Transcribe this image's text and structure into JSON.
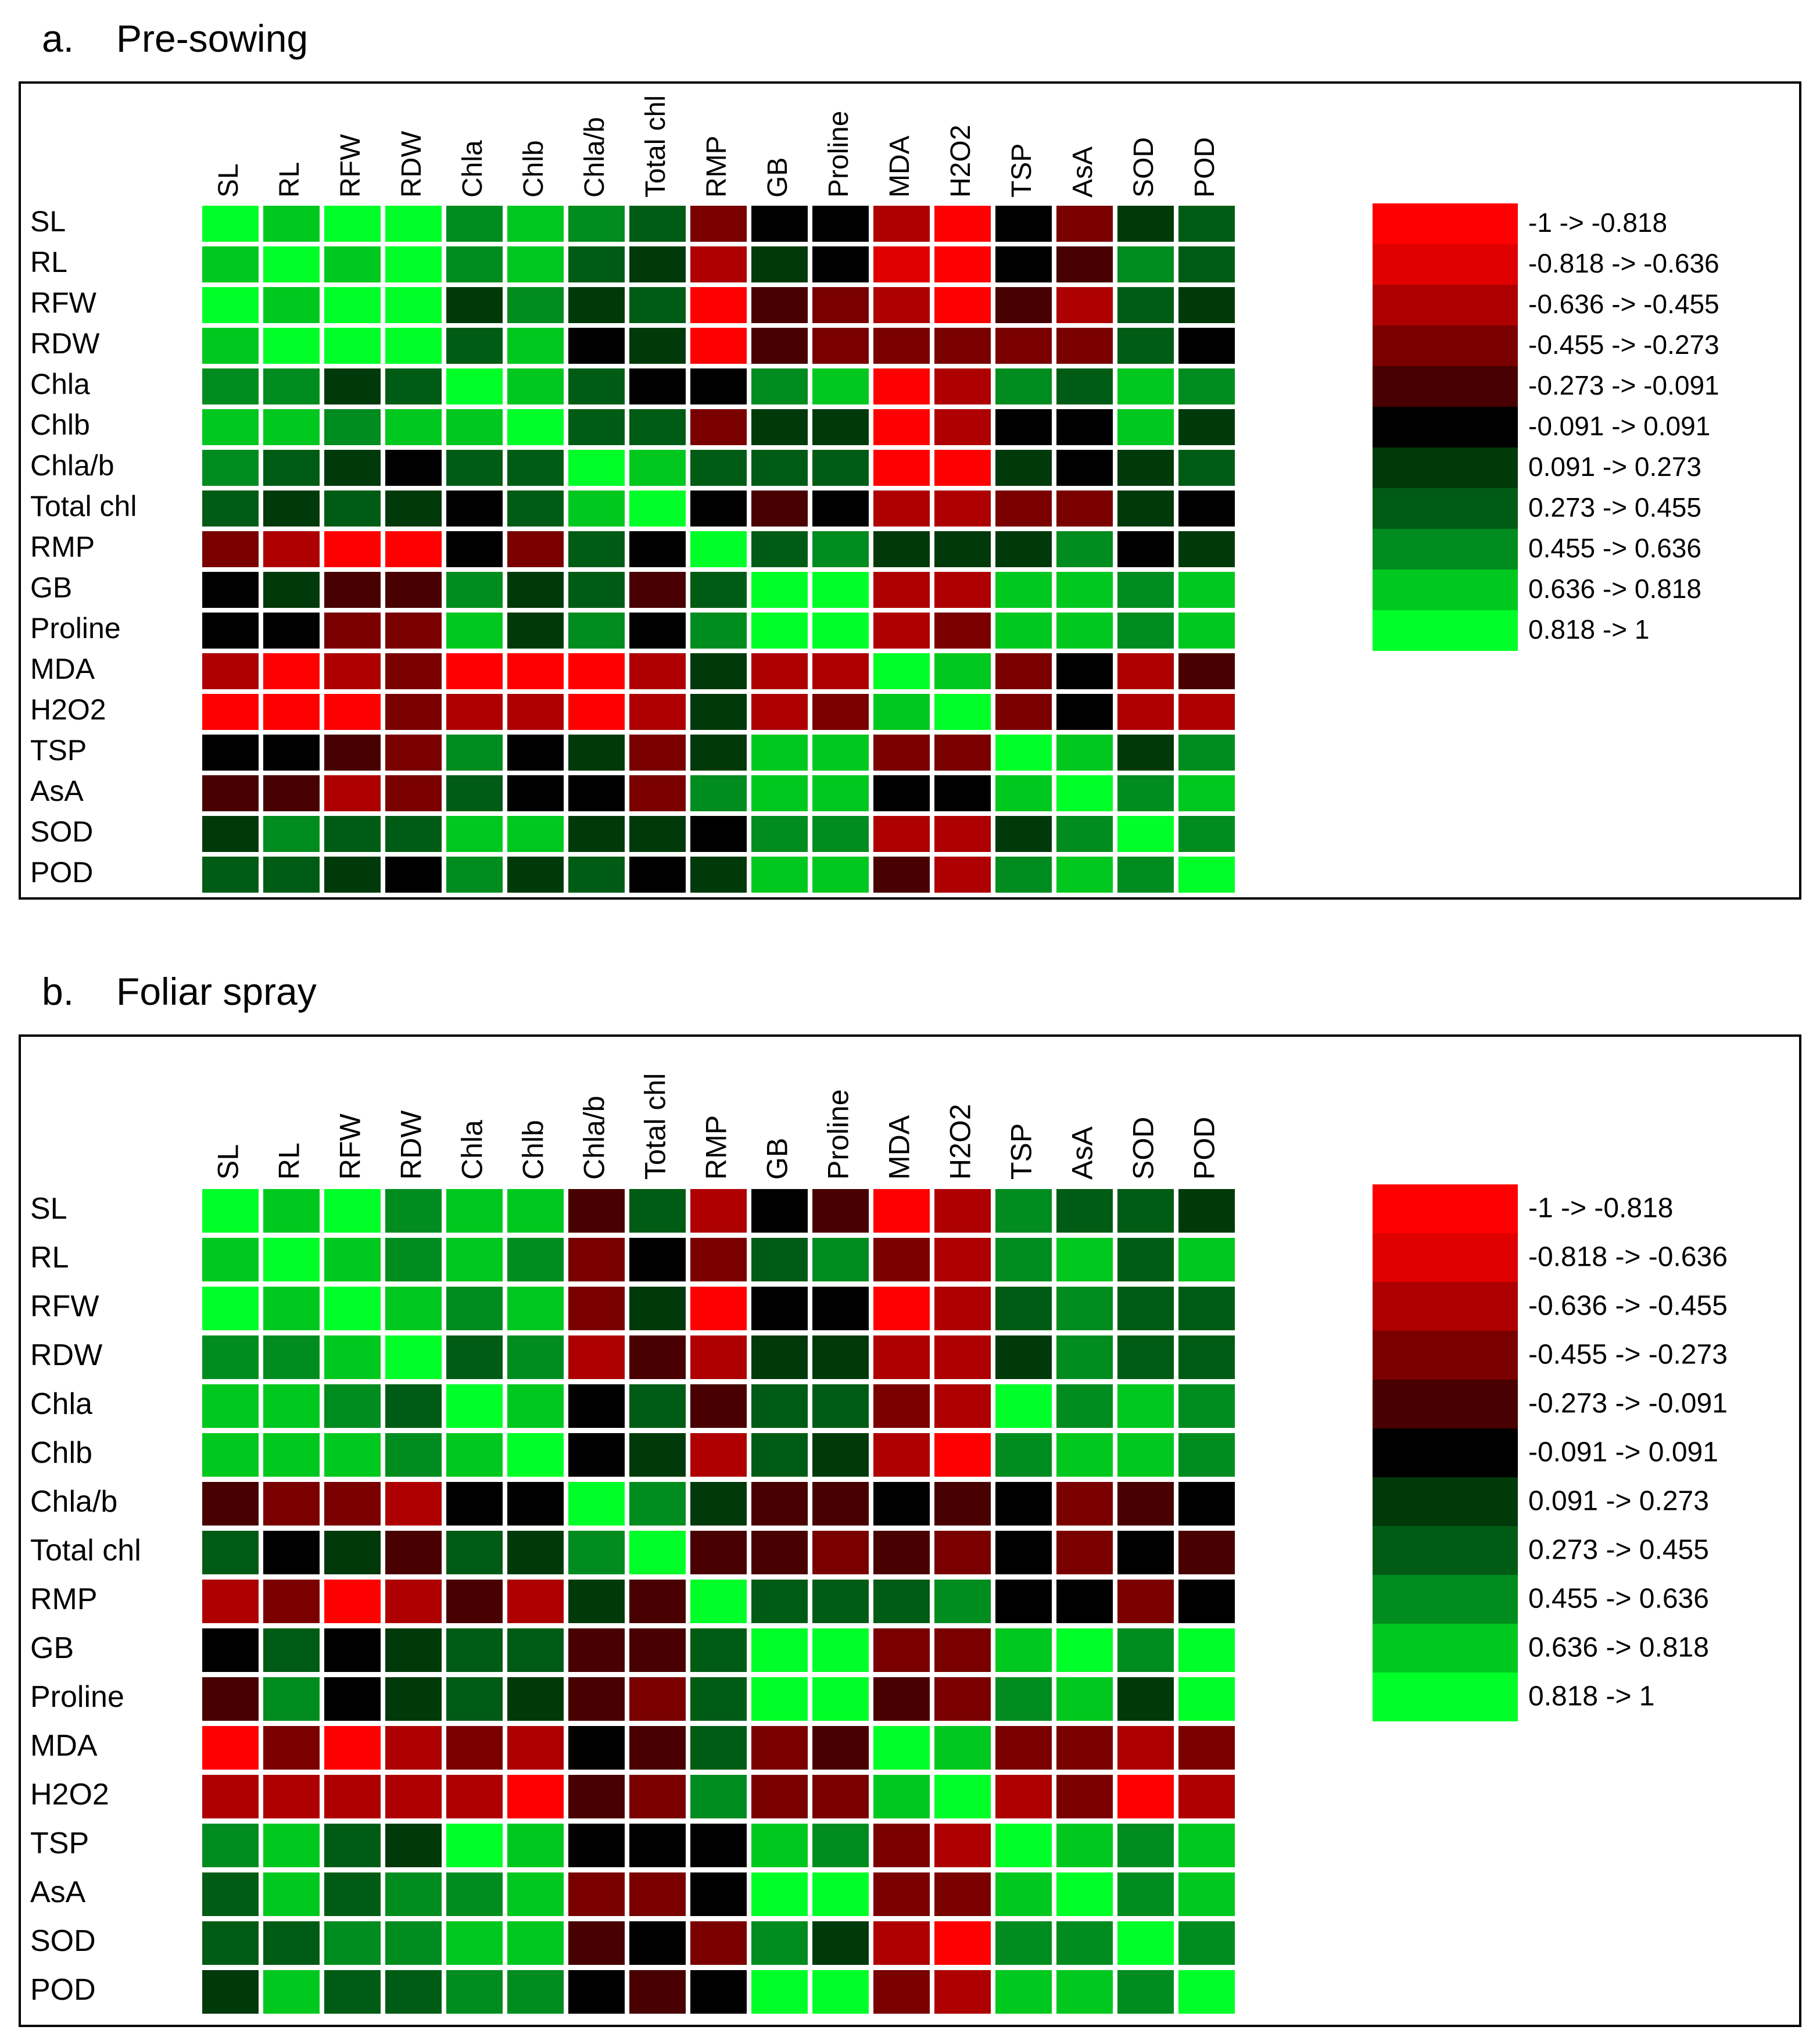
{
  "palette": [
    "#ff0000",
    "#e00000",
    "#ae0000",
    "#7a0000",
    "#480000",
    "#000000",
    "#003a0a",
    "#005c14",
    "#008c1e",
    "#00c81e",
    "#00ff28"
  ],
  "legend": [
    "-1 -> -0.818",
    "-0.818 -> -0.636",
    "-0.636 -> -0.455",
    "-0.455 -> -0.273",
    "-0.273 -> -0.091",
    "-0.091 -> 0.091",
    "0.091 -> 0.273",
    "0.273 -> 0.455",
    "0.455 -> 0.636",
    "0.636 -> 0.818",
    "0.818 -> 1"
  ],
  "chart_data": [
    {
      "type": "heatmap",
      "letter": "a.",
      "title": "Pre-sowing",
      "x_labels": [
        "SL",
        "RL",
        "RFW",
        "RDW",
        "Chla",
        "Chlb",
        "Chla/b",
        "Total chl",
        "RMP",
        "GB",
        "Proline",
        "MDA",
        "H2O2",
        "TSP",
        "AsA",
        "SOD",
        "POD"
      ],
      "y_labels": [
        "SL",
        "RL",
        "RFW",
        "RDW",
        "Chla",
        "Chlb",
        "Chla/b",
        "Total chl",
        "RMP",
        "GB",
        "Proline",
        "MDA",
        "H2O2",
        "TSP",
        "AsA",
        "SOD",
        "POD"
      ],
      "value_bins": [
        [
          10,
          9,
          10,
          10,
          8,
          9,
          8,
          7,
          3,
          5,
          5,
          2,
          0,
          5,
          3,
          6,
          7
        ],
        [
          9,
          10,
          9,
          10,
          8,
          9,
          7,
          6,
          2,
          6,
          5,
          1,
          0,
          5,
          4,
          8,
          7
        ],
        [
          10,
          9,
          10,
          10,
          6,
          8,
          6,
          7,
          0,
          4,
          3,
          2,
          0,
          4,
          2,
          7,
          6
        ],
        [
          9,
          10,
          10,
          10,
          7,
          9,
          5,
          6,
          0,
          4,
          3,
          3,
          3,
          3,
          3,
          7,
          5
        ],
        [
          8,
          8,
          6,
          7,
          10,
          9,
          7,
          5,
          5,
          8,
          9,
          0,
          2,
          8,
          7,
          9,
          8
        ],
        [
          9,
          9,
          8,
          9,
          9,
          10,
          7,
          7,
          3,
          6,
          6,
          0,
          2,
          5,
          5,
          9,
          6
        ],
        [
          8,
          7,
          6,
          5,
          7,
          7,
          10,
          9,
          7,
          7,
          7,
          0,
          0,
          6,
          5,
          6,
          7
        ],
        [
          7,
          6,
          7,
          6,
          5,
          7,
          9,
          10,
          5,
          4,
          5,
          2,
          2,
          3,
          3,
          6,
          5
        ],
        [
          3,
          2,
          0,
          0,
          5,
          3,
          7,
          5,
          10,
          7,
          8,
          6,
          6,
          6,
          8,
          5,
          6
        ],
        [
          5,
          6,
          4,
          4,
          8,
          6,
          7,
          4,
          7,
          10,
          10,
          2,
          2,
          9,
          9,
          8,
          9
        ],
        [
          5,
          5,
          3,
          3,
          9,
          6,
          8,
          5,
          8,
          10,
          10,
          2,
          3,
          9,
          9,
          8,
          9
        ],
        [
          2,
          0,
          2,
          3,
          0,
          0,
          0,
          2,
          6,
          2,
          2,
          10,
          9,
          3,
          5,
          2,
          4
        ],
        [
          0,
          0,
          0,
          3,
          2,
          2,
          0,
          2,
          6,
          2,
          3,
          9,
          10,
          3,
          5,
          2,
          2
        ],
        [
          5,
          5,
          4,
          3,
          8,
          5,
          6,
          3,
          6,
          9,
          9,
          3,
          3,
          10,
          9,
          6,
          8
        ],
        [
          4,
          4,
          2,
          3,
          7,
          5,
          5,
          3,
          8,
          9,
          9,
          5,
          5,
          9,
          10,
          8,
          9
        ],
        [
          6,
          8,
          7,
          7,
          9,
          9,
          6,
          6,
          5,
          8,
          8,
          2,
          2,
          6,
          8,
          10,
          8
        ],
        [
          7,
          7,
          6,
          5,
          8,
          6,
          7,
          5,
          6,
          9,
          9,
          4,
          2,
          8,
          9,
          8,
          10
        ]
      ]
    },
    {
      "type": "heatmap",
      "letter": "b.",
      "title": "Foliar spray",
      "x_labels": [
        "SL",
        "RL",
        "RFW",
        "RDW",
        "Chla",
        "Chlb",
        "Chla/b",
        "Total chl",
        "RMP",
        "GB",
        "Proline",
        "MDA",
        "H2O2",
        "TSP",
        "AsA",
        "SOD",
        "POD"
      ],
      "y_labels": [
        "SL",
        "RL",
        "RFW",
        "RDW",
        "Chla",
        "Chlb",
        "Chla/b",
        "Total chl",
        "RMP",
        "GB",
        "Proline",
        "MDA",
        "H2O2",
        "TSP",
        "AsA",
        "SOD",
        "POD"
      ],
      "value_bins": [
        [
          10,
          9,
          10,
          8,
          9,
          9,
          4,
          7,
          2,
          5,
          4,
          0,
          2,
          8,
          7,
          7,
          6
        ],
        [
          9,
          10,
          9,
          8,
          9,
          8,
          3,
          5,
          3,
          7,
          8,
          3,
          2,
          8,
          9,
          7,
          9
        ],
        [
          10,
          9,
          10,
          9,
          8,
          9,
          3,
          6,
          0,
          5,
          5,
          0,
          2,
          7,
          8,
          7,
          7
        ],
        [
          8,
          8,
          9,
          10,
          7,
          8,
          2,
          4,
          2,
          6,
          6,
          2,
          2,
          6,
          8,
          7,
          7
        ],
        [
          9,
          9,
          8,
          7,
          10,
          9,
          5,
          7,
          4,
          7,
          7,
          3,
          2,
          10,
          8,
          9,
          8
        ],
        [
          9,
          9,
          9,
          8,
          9,
          10,
          5,
          6,
          2,
          7,
          6,
          2,
          0,
          8,
          9,
          9,
          8
        ],
        [
          4,
          3,
          3,
          2,
          5,
          5,
          10,
          8,
          6,
          4,
          4,
          5,
          4,
          5,
          3,
          4,
          5
        ],
        [
          7,
          5,
          6,
          4,
          7,
          6,
          8,
          10,
          4,
          4,
          3,
          4,
          3,
          5,
          3,
          5,
          4
        ],
        [
          2,
          3,
          0,
          2,
          4,
          2,
          6,
          4,
          10,
          7,
          7,
          7,
          8,
          5,
          5,
          3,
          5
        ],
        [
          5,
          7,
          5,
          6,
          7,
          7,
          4,
          4,
          7,
          10,
          10,
          3,
          3,
          9,
          10,
          8,
          10
        ],
        [
          4,
          8,
          5,
          6,
          7,
          6,
          4,
          3,
          7,
          10,
          10,
          4,
          3,
          8,
          9,
          6,
          10
        ],
        [
          0,
          3,
          0,
          2,
          3,
          2,
          5,
          4,
          7,
          3,
          4,
          10,
          9,
          3,
          3,
          2,
          3
        ],
        [
          2,
          2,
          2,
          2,
          2,
          0,
          4,
          3,
          8,
          3,
          3,
          9,
          10,
          2,
          3,
          0,
          2
        ],
        [
          8,
          9,
          7,
          6,
          10,
          9,
          5,
          5,
          5,
          9,
          8,
          3,
          2,
          10,
          9,
          8,
          9
        ],
        [
          7,
          9,
          7,
          8,
          8,
          9,
          3,
          3,
          5,
          10,
          10,
          3,
          3,
          9,
          10,
          8,
          9
        ],
        [
          7,
          7,
          8,
          8,
          9,
          9,
          4,
          5,
          3,
          8,
          6,
          2,
          0,
          8,
          8,
          10,
          8
        ],
        [
          6,
          9,
          7,
          7,
          8,
          8,
          5,
          4,
          5,
          10,
          10,
          3,
          2,
          9,
          9,
          8,
          10
        ]
      ]
    }
  ]
}
